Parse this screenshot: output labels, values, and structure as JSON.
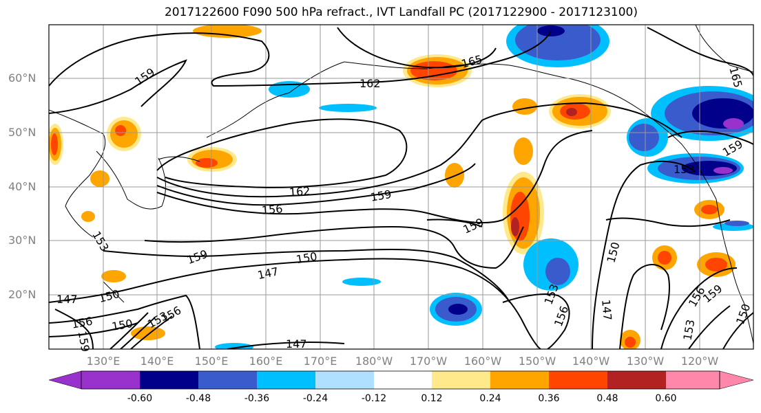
{
  "title": "2017122600 F090 500 hPa refract., IVT Landfall PC (2017122900 - 2017123100)",
  "latitude_labels": [
    "60°N",
    "50°N",
    "40°N",
    "30°N",
    "20°N"
  ],
  "longitude_labels": [
    "130°E",
    "140°E",
    "150°E",
    "160°E",
    "170°E",
    "180°W",
    "170°W",
    "160°W",
    "150°W",
    "140°W",
    "130°W",
    "120°W"
  ],
  "contour_labels": [
    "159",
    "162",
    "165",
    "165",
    "162",
    "159",
    "156",
    "159",
    "153",
    "147",
    "150",
    "147",
    "150",
    "156",
    "150",
    "153",
    "156",
    "159",
    "159",
    "153",
    "150",
    "147",
    "153",
    "156",
    "159",
    "159",
    "156",
    "147",
    "150",
    "153"
  ],
  "colorbar": {
    "tick_labels": [
      "-0.60",
      "-0.48",
      "-0.36",
      "-0.24",
      "-0.12",
      "0.12",
      "0.24",
      "0.36",
      "0.48",
      "0.60"
    ],
    "colors": [
      "#9932cc",
      "#00008b",
      "#3a5bcc",
      "#00bfff",
      "#b0e0ff",
      "#ffffff",
      "#ffe98a",
      "#ffa500",
      "#ff4500",
      "#b22222",
      "#ff88aa"
    ]
  }
}
